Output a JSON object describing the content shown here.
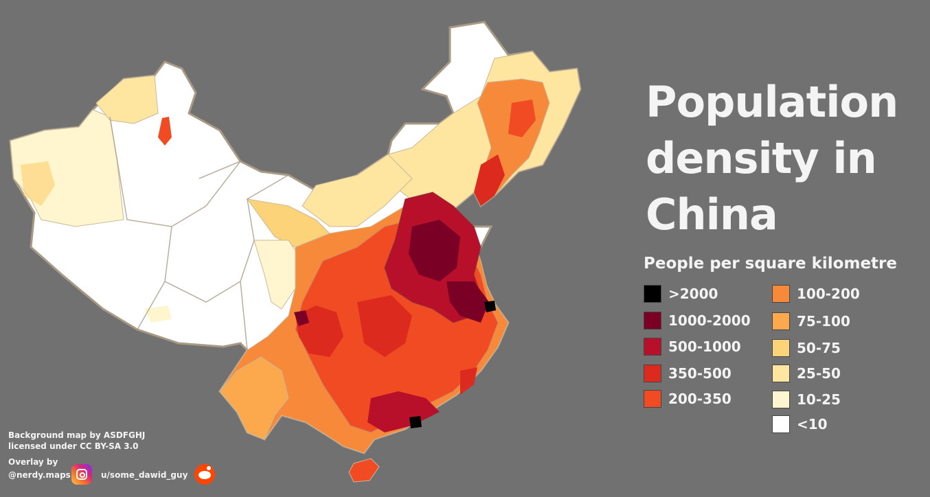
{
  "title": {
    "line1": "Population",
    "line2": "density in",
    "line3": "China"
  },
  "legend": {
    "heading": "People per square kilometre",
    "classes": [
      {
        "label": ">2000",
        "color": "#000000"
      },
      {
        "label": "1000-2000",
        "color": "#7a0026"
      },
      {
        "label": "500-1000",
        "color": "#b80f2a"
      },
      {
        "label": "350-500",
        "color": "#dc2a1f"
      },
      {
        "label": "200-350",
        "color": "#f04b23"
      },
      {
        "label": "100-200",
        "color": "#f7893a"
      },
      {
        "label": "75-100",
        "color": "#fba94c"
      },
      {
        "label": "50-75",
        "color": "#fdd37a"
      },
      {
        "label": "25-50",
        "color": "#fee5a0"
      },
      {
        "label": "10-25",
        "color": "#fff6cf"
      },
      {
        "label": "<10",
        "color": "#ffffff"
      }
    ]
  },
  "credits": {
    "background_line1": "Background map by ASDFGHJ",
    "background_line2": "licensed under CC BY-SA 3.0",
    "overlay": "Overlay by",
    "instagram_handle": "@nerdy.maps",
    "reddit_user": "u/some_dawid_guy"
  },
  "colors": {
    "background": "#717171",
    "text": "#f4f4f4",
    "region_border": "#a99a86"
  },
  "icons": [
    "instagram-icon",
    "reddit-icon"
  ]
}
